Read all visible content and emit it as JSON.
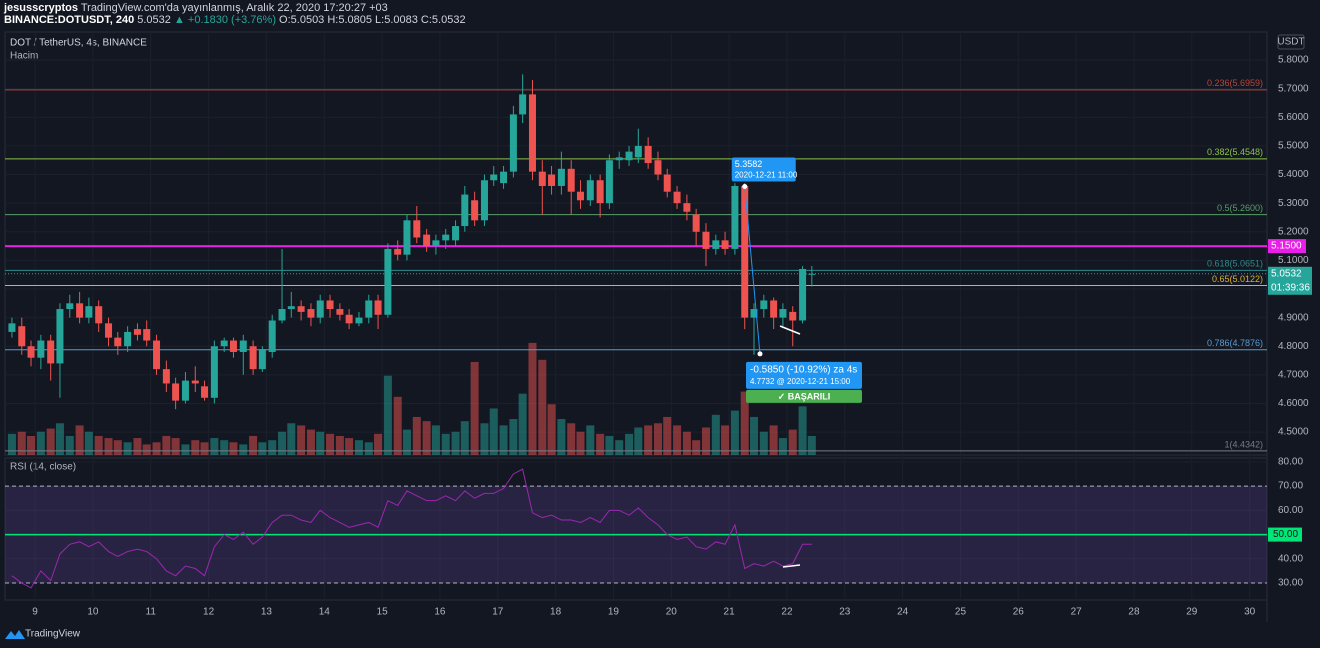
{
  "header": {
    "user": "jesusscryptos",
    "published": "TradingView.com'da yayınlanmış, Aralık 22, 2020 17:20:27 +03",
    "symbol": "BINANCE:DOTUSDT, 240",
    "last": "5.0532",
    "change": "▲ +0.1830 (+3.76%)",
    "ohlc": "O:5.0503 H:5.0805 L:5.0083 C:5.0532"
  },
  "chart_data": [
    {
      "type": "candlestick",
      "title": "DOT / TetherUS, 4s, BINANCE",
      "subtitle": "Hacim",
      "currency": "USDT",
      "up_color": "#26a69a",
      "down_color": "#ef5350",
      "x": [
        8.6,
        8.77,
        8.93,
        9.1,
        9.27,
        9.43,
        9.6,
        9.77,
        9.93,
        10.1,
        10.27,
        10.43,
        10.6,
        10.77,
        10.93,
        11.1,
        11.27,
        11.43,
        11.6,
        11.77,
        11.93,
        12.1,
        12.27,
        12.43,
        12.6,
        12.77,
        12.93,
        13.1,
        13.27,
        13.43,
        13.6,
        13.77,
        13.93,
        14.1,
        14.27,
        14.43,
        14.6,
        14.77,
        14.93,
        15.1,
        15.27,
        15.43,
        15.6,
        15.77,
        15.93,
        16.1,
        16.27,
        16.43,
        16.6,
        16.77,
        16.93,
        17.1,
        17.27,
        17.43,
        17.6,
        17.77,
        17.93,
        18.1,
        18.27,
        18.43,
        18.6,
        18.77,
        18.93,
        19.1,
        19.27,
        19.43,
        19.6,
        19.77,
        19.93,
        20.1,
        20.27,
        20.43,
        20.6,
        20.77,
        20.93,
        21.1,
        21.27,
        21.43,
        21.6,
        21.77,
        21.93,
        22.1,
        22.27,
        22.43
      ],
      "open": [
        4.85,
        4.87,
        4.8,
        4.76,
        4.82,
        4.74,
        4.93,
        4.95,
        4.9,
        4.94,
        4.88,
        4.83,
        4.8,
        4.86,
        4.86,
        4.82,
        4.72,
        4.67,
        4.61,
        4.68,
        4.66,
        4.62,
        4.8,
        4.82,
        4.78,
        4.8,
        4.72,
        4.78,
        4.89,
        4.93,
        4.94,
        4.93,
        4.9,
        4.96,
        4.93,
        4.91,
        4.88,
        4.9,
        4.96,
        4.91,
        5.14,
        5.12,
        5.24,
        5.19,
        5.15,
        5.17,
        5.17,
        5.22,
        5.31,
        5.24,
        5.38,
        5.37,
        5.41,
        5.61,
        5.68,
        5.41,
        5.4,
        5.36,
        5.42,
        5.34,
        5.31,
        5.38,
        5.3,
        5.45,
        5.45,
        5.46,
        5.5,
        5.45,
        5.4,
        5.34,
        5.3,
        5.26,
        5.2,
        5.14,
        5.17,
        5.14,
        5.36,
        4.9,
        4.93,
        4.96,
        4.9,
        4.92,
        4.89,
        5.0503
      ],
      "high": [
        4.9,
        4.9,
        4.82,
        4.84,
        4.84,
        4.95,
        4.98,
        4.99,
        4.97,
        4.96,
        4.9,
        4.85,
        4.87,
        4.88,
        4.89,
        4.84,
        4.75,
        4.69,
        4.71,
        4.73,
        4.68,
        4.82,
        4.83,
        4.83,
        4.84,
        4.82,
        4.8,
        4.91,
        5.14,
        4.99,
        4.96,
        4.95,
        4.98,
        4.98,
        4.95,
        4.93,
        4.92,
        4.98,
        4.98,
        5.16,
        5.17,
        5.26,
        5.29,
        5.21,
        5.19,
        5.21,
        5.24,
        5.36,
        5.34,
        5.4,
        5.43,
        5.43,
        5.64,
        5.75,
        5.73,
        5.45,
        5.43,
        5.48,
        5.45,
        5.38,
        5.4,
        5.4,
        5.47,
        5.48,
        5.5,
        5.56,
        5.53,
        5.48,
        5.42,
        5.36,
        5.33,
        5.28,
        5.23,
        5.19,
        5.2,
        5.37,
        5.37,
        4.95,
        4.98,
        4.97,
        4.95,
        4.94,
        5.08,
        5.0805
      ],
      "low": [
        4.83,
        4.77,
        4.73,
        4.72,
        4.68,
        4.62,
        4.9,
        4.88,
        4.88,
        4.85,
        4.8,
        4.77,
        4.78,
        4.82,
        4.8,
        4.7,
        4.64,
        4.58,
        4.6,
        4.64,
        4.61,
        4.6,
        4.78,
        4.76,
        4.7,
        4.7,
        4.71,
        4.76,
        4.88,
        4.9,
        4.89,
        4.87,
        4.88,
        4.9,
        4.89,
        4.86,
        4.87,
        4.88,
        4.86,
        4.9,
        5.1,
        5.1,
        5.16,
        5.13,
        5.12,
        5.14,
        5.15,
        5.2,
        5.22,
        5.22,
        5.36,
        5.35,
        5.39,
        5.58,
        5.38,
        5.26,
        5.33,
        5.33,
        5.26,
        5.28,
        5.29,
        5.25,
        5.28,
        5.42,
        5.43,
        5.44,
        5.42,
        5.38,
        5.32,
        5.28,
        5.24,
        5.15,
        5.08,
        5.12,
        5.12,
        5.12,
        4.86,
        4.77,
        4.9,
        4.86,
        4.87,
        4.8,
        4.88,
        5.0083
      ],
      "close": [
        4.88,
        4.8,
        4.76,
        4.82,
        4.74,
        4.93,
        4.95,
        4.9,
        4.94,
        4.88,
        4.83,
        4.8,
        4.85,
        4.84,
        4.82,
        4.72,
        4.67,
        4.61,
        4.68,
        4.67,
        4.62,
        4.8,
        4.82,
        4.78,
        4.82,
        4.72,
        4.79,
        4.89,
        4.93,
        4.94,
        4.92,
        4.9,
        4.96,
        4.93,
        4.91,
        4.88,
        4.9,
        4.96,
        4.91,
        5.14,
        5.12,
        5.24,
        5.18,
        5.15,
        5.17,
        5.19,
        5.22,
        5.33,
        5.24,
        5.38,
        5.4,
        5.41,
        5.61,
        5.68,
        5.41,
        5.36,
        5.36,
        5.42,
        5.34,
        5.31,
        5.38,
        5.3,
        5.45,
        5.46,
        5.48,
        5.5,
        5.44,
        5.4,
        5.34,
        5.3,
        5.27,
        5.2,
        5.14,
        5.17,
        5.14,
        5.36,
        4.9,
        4.93,
        4.96,
        4.9,
        4.93,
        4.89,
        5.07,
        5.0532
      ],
      "volume": {
        "ylim": [
          0,
          400
        ],
        "values": [
          20,
          22,
          18,
          22,
          25,
          30,
          18,
          28,
          22,
          18,
          16,
          14,
          12,
          16,
          10,
          12,
          18,
          16,
          10,
          14,
          12,
          16,
          14,
          12,
          10,
          18,
          12,
          14,
          22,
          30,
          28,
          24,
          22,
          20,
          18,
          16,
          14,
          12,
          20,
          75,
          55,
          24,
          36,
          32,
          28,
          20,
          22,
          32,
          88,
          30,
          44,
          28,
          34,
          58,
          106,
          90,
          48,
          34,
          30,
          22,
          28,
          20,
          18,
          14,
          20,
          26,
          28,
          30,
          36,
          28,
          22,
          14,
          26,
          38,
          28,
          42,
          60,
          36,
          22,
          28,
          16,
          24,
          46,
          18
        ]
      },
      "xlim": [
        8.48,
        30.3
      ],
      "xticks": [
        9,
        10,
        11,
        12,
        13,
        14,
        15,
        16,
        17,
        18,
        19,
        20,
        21,
        22,
        23,
        24,
        25,
        26,
        27,
        28,
        29,
        30
      ],
      "ylim": [
        4.42,
        5.898
      ],
      "yticks": [
        {
          "value": 4.5,
          "label": "4.5000"
        },
        {
          "value": 4.6,
          "label": "4.6000"
        },
        {
          "value": 4.7,
          "label": "4.7000"
        },
        {
          "value": 4.8,
          "label": "4.8000"
        },
        {
          "value": 4.9,
          "label": "4.9000"
        },
        {
          "value": 5.0,
          "label": "5.0000"
        },
        {
          "value": 5.1,
          "label": "5.1000"
        },
        {
          "value": 5.2,
          "label": "5.2000"
        },
        {
          "value": 5.3,
          "label": "5.3000"
        },
        {
          "value": 5.4,
          "label": "5.4000"
        },
        {
          "value": 5.5,
          "label": "5.5000"
        },
        {
          "value": 5.6,
          "label": "5.6000"
        },
        {
          "value": 5.7,
          "label": "5.7000"
        },
        {
          "value": 5.8,
          "label": "5.8000"
        }
      ],
      "levels": [
        {
          "label": "0.236(5.6959)",
          "value": 5.6959,
          "color": "#b5453e"
        },
        {
          "label": "0.382(5.4548)",
          "value": 5.4548,
          "color": "#8bc34a"
        },
        {
          "label": "0.5(5.2600)",
          "value": 5.26,
          "color": "#5a9e6a"
        },
        {
          "label": "0.618(5.0651)",
          "value": 5.0651,
          "color": "#2e8b8b"
        },
        {
          "label": "0.65(5.0122)",
          "value": 5.0122,
          "color": "#e0b030"
        },
        {
          "label": "0.786(4.7876)",
          "value": 4.7876,
          "color": "#5a9bd0"
        },
        {
          "label": "1(4.4342)",
          "value": 4.4342,
          "color": "#787b86"
        }
      ],
      "hline": {
        "value": 5.15,
        "label": "5.1500",
        "color": "#e91ee9"
      },
      "last_price": {
        "value": 5.0532,
        "countdown": "01:39:36"
      },
      "measure": {
        "high": 5.3582,
        "high_time": "2020-12-21 11:00",
        "low": 4.7732,
        "change": "-0.5850 (-10.92%) za 4s",
        "low_label": "4.7732 @ 2020-12-21  15:00",
        "status": "✓ BAŞARILI"
      }
    },
    {
      "type": "line",
      "title": "RSI (14, close)",
      "color": "#9c27b0",
      "values": [
        33,
        30,
        28,
        35,
        31,
        42,
        46,
        47,
        45,
        47,
        43,
        41,
        43,
        44,
        43,
        40,
        35,
        33,
        37,
        36,
        33,
        45,
        50,
        48,
        51,
        46,
        49,
        55,
        58,
        58,
        56,
        55,
        60,
        57,
        55,
        53,
        54,
        55,
        53,
        64,
        62,
        68,
        66,
        64,
        64,
        66,
        64,
        68,
        65,
        67,
        67,
        69,
        75,
        77,
        59,
        57,
        58,
        56,
        56,
        55,
        57,
        55,
        60,
        60,
        58,
        61,
        57,
        54,
        50,
        48,
        49,
        45,
        44,
        47,
        46,
        54,
        36,
        38,
        37,
        39,
        37,
        38,
        46,
        46
      ],
      "ylim": [
        23,
        81.6
      ],
      "yticks": [
        {
          "value": 30,
          "label": "30.00"
        },
        {
          "value": 40,
          "label": "40.00"
        },
        {
          "value": 50,
          "label": "50.00"
        },
        {
          "value": 60,
          "label": "60.00"
        },
        {
          "value": 70,
          "label": "70.00"
        },
        {
          "value": 80,
          "label": "80.00"
        }
      ],
      "bands": [
        30,
        70
      ],
      "midline": 50
    }
  ],
  "footer": "TradingView"
}
